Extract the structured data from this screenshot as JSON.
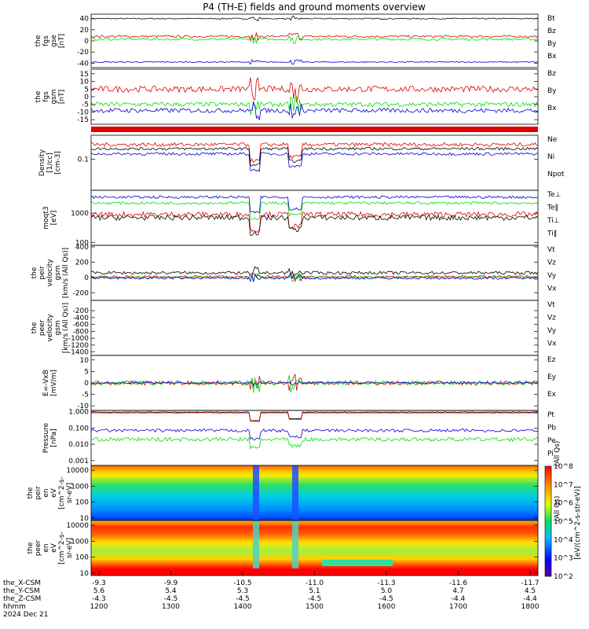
{
  "title": "P4 (TH-E) fields and ground moments overview",
  "colors": {
    "black": "#000000",
    "red": "#e00000",
    "green": "#00e000",
    "blue": "#0000d0"
  },
  "chart_data": {
    "type": "line",
    "x_unit": "hhmm",
    "x_ticks": [
      "1200",
      "1300",
      "1400",
      "1500",
      "1600",
      "1700",
      "1800"
    ],
    "date_label": "2024 Dec 21",
    "ephemeris": {
      "rows": [
        {
          "label": "the_X-CSM",
          "values": [
            "-9.3",
            "-9.9",
            "-10.5",
            "-11.0",
            "-11.3",
            "-11.6",
            "-11.7"
          ]
        },
        {
          "label": "the_Y-CSM",
          "values": [
            "5.6",
            "5.4",
            "5.3",
            "5.1",
            "5.0",
            "4.7",
            "4.5"
          ]
        },
        {
          "label": "the_Z-CSM",
          "values": [
            "-4.3",
            "-4.5",
            "-4.5",
            "-4.5",
            "-4.5",
            "-4.4",
            "-4.4"
          ]
        },
        {
          "label": "hhmm",
          "values": [
            "1200",
            "1300",
            "1400",
            "1500",
            "1600",
            "1700",
            "1800"
          ]
        }
      ]
    },
    "colorbar": {
      "label": "[eV/(cm^2-s-str-eV)]",
      "ticks": [
        "10^2",
        "10^3",
        "10^4",
        "10^5",
        "10^6",
        "10^7",
        "10^8"
      ]
    },
    "panels": [
      {
        "id": "fgs-gse",
        "ylabel": [
          "the",
          "fgs",
          "gse",
          "[nT]"
        ],
        "ylim": [
          -48,
          48
        ],
        "yticks": [
          40,
          20,
          0,
          -20,
          -40
        ],
        "series": [
          {
            "name": "Bt",
            "color": "black",
            "base": 40,
            "amp": 2
          },
          {
            "name": "Bz",
            "color": "red",
            "base": 8,
            "amp": 4
          },
          {
            "name": "By",
            "color": "green",
            "base": 3,
            "amp": 4
          },
          {
            "name": "Bx",
            "color": "blue",
            "base": -38,
            "amp": 2
          }
        ]
      },
      {
        "id": "fgs-gsm-dsl",
        "ylabel": [
          "the",
          "fgs",
          "gsm",
          "[nT]"
        ],
        "ylim": [
          -18,
          18
        ],
        "yticks": [
          15,
          10,
          5,
          0,
          -5,
          -10,
          -15
        ],
        "series": [
          {
            "name": "Bz",
            "color": "red",
            "base": 5,
            "amp": 4
          },
          {
            "name": "By",
            "color": "green",
            "base": -5,
            "amp": 3
          },
          {
            "name": "Bx",
            "color": "blue",
            "base": -9,
            "amp": 3
          }
        ]
      },
      {
        "id": "density",
        "ylabel": [
          "Density",
          "[1/cc]",
          "[cm-3]"
        ],
        "log": true,
        "ylim": [
          0.01,
          0.6
        ],
        "yticks": [
          0.1
        ],
        "series": [
          {
            "name": "Ne",
            "color": "red",
            "base": 0.3,
            "amp": 0.2
          },
          {
            "name": "Ni",
            "color": "black",
            "base": 0.22,
            "amp": 0.15
          },
          {
            "name": "Npot",
            "color": "blue",
            "base": 0.15,
            "amp": 0.15
          }
        ]
      },
      {
        "id": "temperature",
        "ylabel": [
          "moqt3",
          "[eV]"
        ],
        "log": true,
        "ylim": [
          80,
          6000
        ],
        "yticks": [
          1000,
          100
        ],
        "series": [
          {
            "name": "Te⊥",
            "color": "red",
            "base": 900,
            "amp": 0.3
          },
          {
            "name": "Te‖",
            "color": "black",
            "base": 700,
            "amp": 0.3
          },
          {
            "name": "Ti⊥",
            "color": "blue",
            "base": 3500,
            "amp": 0.15
          },
          {
            "name": "Ti‖",
            "color": "green",
            "base": 2200,
            "amp": 0.15
          }
        ]
      },
      {
        "id": "peir-velocity",
        "ylabel": [
          "the",
          "peir",
          "velocity",
          "gsm",
          "[km/s (All Qs)]"
        ],
        "ylim": [
          -300,
          420
        ],
        "yticks": [
          400,
          200,
          0,
          -200
        ],
        "series": [
          {
            "name": "Vt",
            "color": "black",
            "base": 60,
            "amp": 40
          },
          {
            "name": "Vz",
            "color": "red",
            "base": 10,
            "amp": 30
          },
          {
            "name": "Vy",
            "color": "green",
            "base": 0,
            "amp": 30
          },
          {
            "name": "Vx",
            "color": "blue",
            "base": -10,
            "amp": 30
          }
        ]
      },
      {
        "id": "peer-velocity",
        "ylabel": [
          "the",
          "peer",
          "velocity",
          "gsm",
          "[km/s (All Qs)]"
        ],
        "ylim": [
          -1500,
          100
        ],
        "yticks": [
          -200,
          -400,
          -600,
          -800,
          -1000,
          -1200,
          -1400
        ],
        "series": [
          {
            "name": "Vt",
            "color": "black"
          },
          {
            "name": "Vz",
            "color": "red"
          },
          {
            "name": "Vy",
            "color": "green"
          },
          {
            "name": "Vx",
            "color": "blue"
          }
        ]
      },
      {
        "id": "efield",
        "ylabel": [
          "E=-VxB",
          "[mV/m]"
        ],
        "ylim": [
          -12,
          12
        ],
        "yticks": [
          10,
          5,
          0,
          -5,
          -10
        ],
        "series": [
          {
            "name": "Ez",
            "color": "red",
            "base": 0,
            "amp": 2
          },
          {
            "name": "Ey",
            "color": "green",
            "base": 0,
            "amp": 2
          },
          {
            "name": "Ex",
            "color": "blue",
            "base": 0,
            "amp": 0.5
          }
        ]
      },
      {
        "id": "pressure",
        "ylabel": [
          "Pressure",
          "[nPa]"
        ],
        "log": true,
        "ylim": [
          0.0005,
          1.2
        ],
        "yticks": [
          1.0,
          0.1,
          0.01,
          0.001
        ],
        "ytick_labels": [
          "1.000",
          "0.100",
          "0.010",
          "0.001"
        ],
        "right_label": "(All Qs)",
        "series": [
          {
            "name": "Pt",
            "color": "black",
            "base": 0.95,
            "amp": 0.05
          },
          {
            "name": "Pb",
            "color": "red",
            "base": 0.85,
            "amp": 0.05
          },
          {
            "name": "Pe",
            "color": "green",
            "base": 0.02,
            "amp": 0.4
          },
          {
            "name": "Pi",
            "color": "blue",
            "base": 0.07,
            "amp": 0.3
          }
        ]
      },
      {
        "id": "peir-spec",
        "ylabel": [
          "the",
          "peir",
          "en",
          "eV",
          "[cm^2-s-",
          "sr-eV]"
        ],
        "spectrogram": true,
        "ylim": [
          7,
          20000
        ],
        "yticks": [
          10000,
          1000,
          100,
          10
        ],
        "colorbar_label": "[eV/(cm^2-s-str-eV)]",
        "right_label": "(All Qs)"
      },
      {
        "id": "peer-spec",
        "ylabel": [
          "the",
          "peer",
          "en",
          "eV",
          "[cm^2-s-",
          "sr-eV]"
        ],
        "spectrogram": true,
        "ylim": [
          7,
          20000
        ],
        "yticks": [
          10000,
          1000,
          100,
          10
        ],
        "colorbar_label": "[eV/(cm^2-s-str-eV)]"
      }
    ]
  }
}
